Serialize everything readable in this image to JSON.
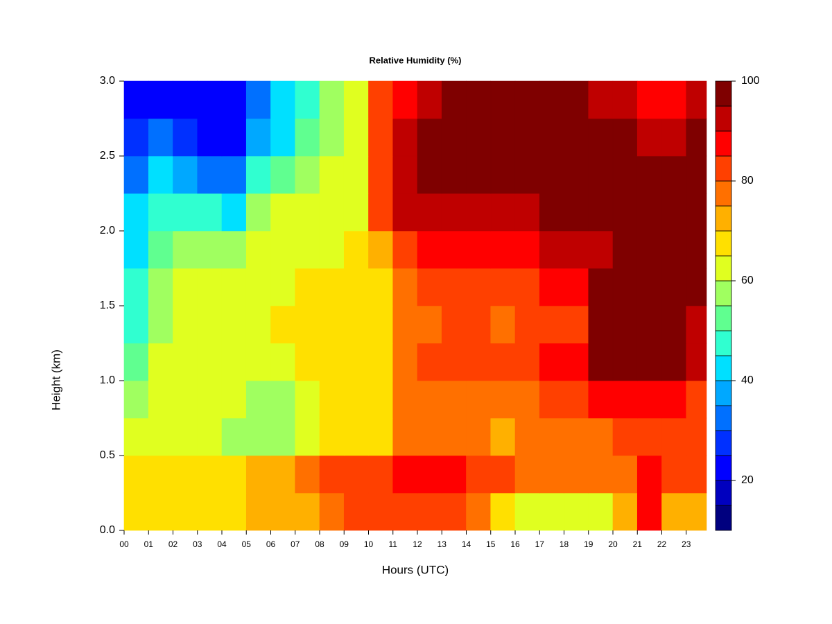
{
  "chart_data": {
    "type": "heatmap",
    "title": "Relative Humidity (%)",
    "x_label": "Hours (UTC)",
    "y_label": "Height (km)",
    "x": [
      0,
      1,
      2,
      3,
      4,
      5,
      6,
      7,
      8,
      9,
      10,
      11,
      12,
      13,
      14,
      15,
      16,
      17,
      18,
      19,
      20,
      21,
      22,
      23
    ],
    "y": [
      0,
      0.25,
      0.5,
      0.75,
      1,
      1.25,
      1.5,
      1.75,
      2,
      2.25,
      2.5,
      2.75
    ],
    "values": [
      [
        67,
        67,
        68,
        68,
        68,
        70,
        72,
        74,
        78,
        80,
        80,
        82,
        82,
        80,
        75,
        68,
        62,
        62,
        62,
        64,
        72,
        86,
        72,
        70
      ],
      [
        66,
        67,
        67,
        67,
        67,
        70,
        72,
        78,
        82,
        82,
        82,
        85,
        86,
        86,
        84,
        80,
        78,
        78,
        78,
        76,
        78,
        88,
        80,
        80
      ],
      [
        60,
        60,
        60,
        60,
        58,
        58,
        57,
        62,
        66,
        66,
        68,
        76,
        78,
        78,
        76,
        74,
        75,
        76,
        76,
        78,
        82,
        82,
        80,
        80
      ],
      [
        58,
        60,
        62,
        62,
        60,
        58,
        58,
        64,
        66,
        66,
        66,
        76,
        78,
        78,
        78,
        76,
        78,
        80,
        82,
        86,
        88,
        88,
        86,
        84
      ],
      [
        54,
        60,
        62,
        62,
        62,
        64,
        64,
        66,
        66,
        66,
        66,
        78,
        80,
        82,
        84,
        82,
        84,
        86,
        86,
        96,
        96,
        96,
        96,
        92
      ],
      [
        48,
        58,
        62,
        62,
        62,
        64,
        65,
        66,
        66,
        66,
        66,
        76,
        78,
        80,
        80,
        78,
        80,
        82,
        82,
        96,
        96,
        96,
        96,
        94
      ],
      [
        46,
        56,
        60,
        60,
        60,
        64,
        64,
        66,
        66,
        66,
        66,
        78,
        82,
        84,
        84,
        82,
        84,
        86,
        86,
        96,
        96,
        96,
        96,
        96
      ],
      [
        44,
        54,
        56,
        56,
        56,
        62,
        62,
        64,
        64,
        66,
        70,
        84,
        86,
        86,
        88,
        88,
        88,
        90,
        92,
        94,
        96,
        96,
        96,
        96
      ],
      [
        40,
        46,
        48,
        46,
        44,
        56,
        60,
        62,
        62,
        64,
        80,
        90,
        92,
        92,
        94,
        94,
        94,
        96,
        96,
        96,
        96,
        96,
        96,
        96
      ],
      [
        34,
        40,
        38,
        34,
        32,
        46,
        54,
        58,
        60,
        62,
        84,
        92,
        96,
        97,
        97,
        97,
        97,
        97,
        97,
        97,
        97,
        97,
        97,
        97
      ],
      [
        26,
        32,
        28,
        24,
        24,
        38,
        44,
        52,
        58,
        62,
        84,
        90,
        96,
        97,
        97,
        97,
        97,
        97,
        97,
        97,
        96,
        92,
        94,
        96
      ],
      [
        22,
        24,
        22,
        20,
        22,
        34,
        40,
        48,
        56,
        62,
        82,
        88,
        94,
        96,
        96,
        96,
        96,
        96,
        96,
        94,
        90,
        88,
        86,
        90
      ]
    ],
    "xlim": [
      0,
      23.83
    ],
    "ylim": [
      0,
      3
    ],
    "xticks": [
      {
        "value": 0,
        "label": "00"
      },
      {
        "value": 1,
        "label": "01"
      },
      {
        "value": 2,
        "label": "02"
      },
      {
        "value": 3,
        "label": "03"
      },
      {
        "value": 4,
        "label": "04"
      },
      {
        "value": 5,
        "label": "05"
      },
      {
        "value": 6,
        "label": "06"
      },
      {
        "value": 7,
        "label": "07"
      },
      {
        "value": 8,
        "label": "08"
      },
      {
        "value": 9,
        "label": "09"
      },
      10,
      11,
      12,
      13,
      14,
      15,
      16,
      17,
      18,
      19,
      20,
      21,
      22,
      23
    ],
    "yticks": [
      {
        "value": 0,
        "label": "0.0"
      },
      0.5,
      {
        "value": 1,
        "label": "1.0"
      },
      1.5,
      {
        "value": 2,
        "label": "2.0"
      },
      2.5,
      {
        "value": 3,
        "label": "3.0"
      }
    ],
    "levels": [
      10,
      15,
      20,
      25,
      30,
      35,
      40,
      45,
      50,
      55,
      60,
      65,
      70,
      75,
      80,
      85,
      90,
      95,
      100
    ],
    "colors": [
      "#00007F",
      "#0000BF",
      "#0000FF",
      "#0030FF",
      "#0070FF",
      "#00A8FF",
      "#00E0FF",
      "#30FFD0",
      "#60FF90",
      "#A0FF60",
      "#E0FF20",
      "#FFE000",
      "#FFB000",
      "#FF7000",
      "#FF4000",
      "#FF0000",
      "#BF0000",
      "#7F0000"
    ],
    "colorbar_ticks": [
      20,
      40,
      60,
      80,
      100
    ]
  }
}
